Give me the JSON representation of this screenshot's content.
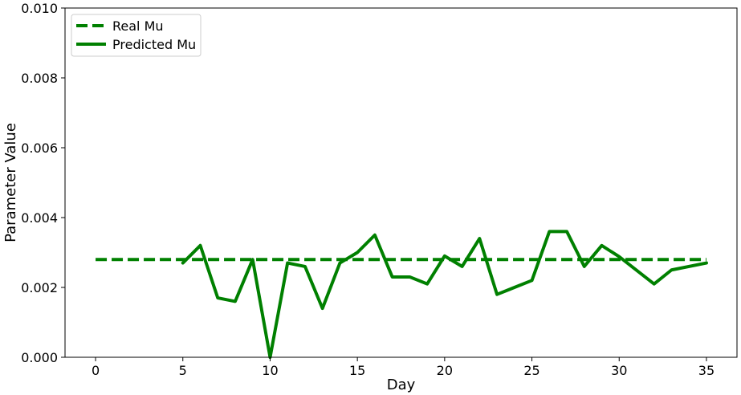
{
  "chart_data": {
    "type": "line",
    "xlabel": "Day",
    "ylabel": "Parameter Value",
    "xlim": [
      -1.75,
      36.75
    ],
    "ylim": [
      0,
      0.01
    ],
    "xticks": [
      0,
      5,
      10,
      15,
      20,
      25,
      30,
      35
    ],
    "yticks": [
      0.0,
      0.002,
      0.004,
      0.006,
      0.008,
      0.01
    ],
    "ytick_labels": [
      "0.000",
      "0.002",
      "0.004",
      "0.006",
      "0.008",
      "0.010"
    ],
    "grid": false,
    "legend_position": "top-left",
    "series": [
      {
        "name": "Real Mu",
        "style": "dashed",
        "color": "#008000",
        "x": [
          0,
          35
        ],
        "y": [
          0.0028,
          0.0028
        ]
      },
      {
        "name": "Predicted Mu",
        "style": "solid",
        "color": "#008000",
        "x": [
          5,
          6,
          7,
          8,
          9,
          10,
          11,
          12,
          13,
          14,
          15,
          16,
          17,
          18,
          19,
          20,
          21,
          22,
          23,
          25,
          26,
          27,
          28,
          29,
          30,
          32,
          33,
          35
        ],
        "y": [
          0.0027,
          0.0032,
          0.0017,
          0.0016,
          0.0028,
          0.0,
          0.0027,
          0.0026,
          0.0014,
          0.0027,
          0.003,
          0.0035,
          0.0023,
          0.0023,
          0.0021,
          0.0029,
          0.0026,
          0.0034,
          0.0018,
          0.0022,
          0.0036,
          0.0036,
          0.0026,
          0.0032,
          0.00288,
          0.0021,
          0.0025,
          0.0027
        ]
      }
    ]
  }
}
